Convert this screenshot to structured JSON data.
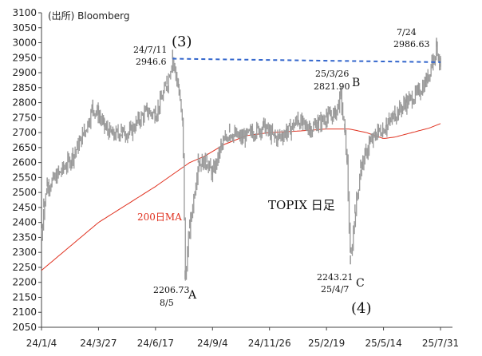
{
  "chart_data": {
    "type": "line",
    "source": "(出所) Bloomberg",
    "ylim": [
      2050,
      3100
    ],
    "y_ticks": [
      2050,
      2100,
      2150,
      2200,
      2250,
      2300,
      2350,
      2400,
      2450,
      2500,
      2550,
      2600,
      2650,
      2700,
      2750,
      2800,
      2850,
      2900,
      2950,
      3000,
      3050,
      3100
    ],
    "x_ticks": [
      "24/1/4",
      "24/3/27",
      "24/6/17",
      "24/9/4",
      "24/11/26",
      "25/2/19",
      "25/5/14",
      "25/7/31"
    ],
    "series": [
      {
        "name": "TOPIX 日足",
        "color": "#999999",
        "points": [
          [
            0,
            2350
          ],
          [
            0.04,
            2450
          ],
          [
            0.1,
            2520
          ],
          [
            0.3,
            2560
          ],
          [
            0.55,
            2620
          ],
          [
            0.75,
            2700
          ],
          [
            0.9,
            2780
          ],
          [
            1.0,
            2760
          ],
          [
            1.1,
            2720
          ],
          [
            1.25,
            2690
          ],
          [
            1.4,
            2700
          ],
          [
            1.55,
            2700
          ],
          [
            1.7,
            2740
          ],
          [
            1.85,
            2770
          ],
          [
            2.0,
            2760
          ],
          [
            2.1,
            2810
          ],
          [
            2.2,
            2860
          ],
          [
            2.3,
            2946.6
          ],
          [
            2.4,
            2850
          ],
          [
            2.48,
            2720
          ],
          [
            2.52,
            2210
          ],
          [
            2.6,
            2380
          ],
          [
            2.75,
            2600
          ],
          [
            2.9,
            2600
          ],
          [
            3.0,
            2560
          ],
          [
            3.15,
            2650
          ],
          [
            3.3,
            2700
          ],
          [
            3.5,
            2680
          ],
          [
            3.7,
            2700
          ],
          [
            3.9,
            2720
          ],
          [
            4.1,
            2680
          ],
          [
            4.3,
            2700
          ],
          [
            4.5,
            2740
          ],
          [
            4.7,
            2710
          ],
          [
            4.85,
            2730
          ],
          [
            5.0,
            2750
          ],
          [
            5.15,
            2760
          ],
          [
            5.25,
            2821.9
          ],
          [
            5.32,
            2700
          ],
          [
            5.36,
            2600
          ],
          [
            5.42,
            2260
          ],
          [
            5.5,
            2430
          ],
          [
            5.6,
            2580
          ],
          [
            5.75,
            2660
          ],
          [
            5.9,
            2700
          ],
          [
            6.05,
            2720
          ],
          [
            6.2,
            2760
          ],
          [
            6.4,
            2800
          ],
          [
            6.6,
            2830
          ],
          [
            6.75,
            2870
          ],
          [
            6.85,
            2930
          ],
          [
            6.93,
            2986.6
          ],
          [
            7.0,
            2920
          ]
        ]
      },
      {
        "name": "200日MA",
        "color": "#e0301e",
        "points": [
          [
            0,
            2240
          ],
          [
            1.0,
            2400
          ],
          [
            2.0,
            2520
          ],
          [
            2.6,
            2600
          ],
          [
            2.85,
            2620
          ],
          [
            3.2,
            2660
          ],
          [
            3.6,
            2690
          ],
          [
            4.0,
            2700
          ],
          [
            4.5,
            2705
          ],
          [
            5.0,
            2712
          ],
          [
            5.4,
            2712
          ],
          [
            5.7,
            2700
          ],
          [
            6.0,
            2680
          ],
          [
            6.2,
            2685
          ],
          [
            6.5,
            2700
          ],
          [
            6.8,
            2715
          ],
          [
            7.0,
            2730
          ]
        ]
      }
    ],
    "resistance_line": {
      "from": [
        2.3,
        2946.6
      ],
      "to": [
        7.0,
        2935
      ],
      "style": "dashed",
      "color": "#3366cc"
    },
    "annotations": {
      "peak1_date": "24/7/11",
      "peak1_value": "2946.6",
      "peak1_wave": "(3)",
      "low_a_value": "2206.73",
      "low_a_date": "8/5",
      "low_a_label": "A",
      "peak_b_date": "25/3/26",
      "peak_b_value": "2821.90",
      "peak_b_label": "B",
      "low_c_value": "2243.21",
      "low_c_date": "25/4/7",
      "low_c_label": "C",
      "low_c_wave": "(4)",
      "peak2_date": "7/24",
      "peak2_value": "2986.63",
      "ma_label": "200日MA",
      "chart_label": "TOPIX 日足"
    }
  }
}
